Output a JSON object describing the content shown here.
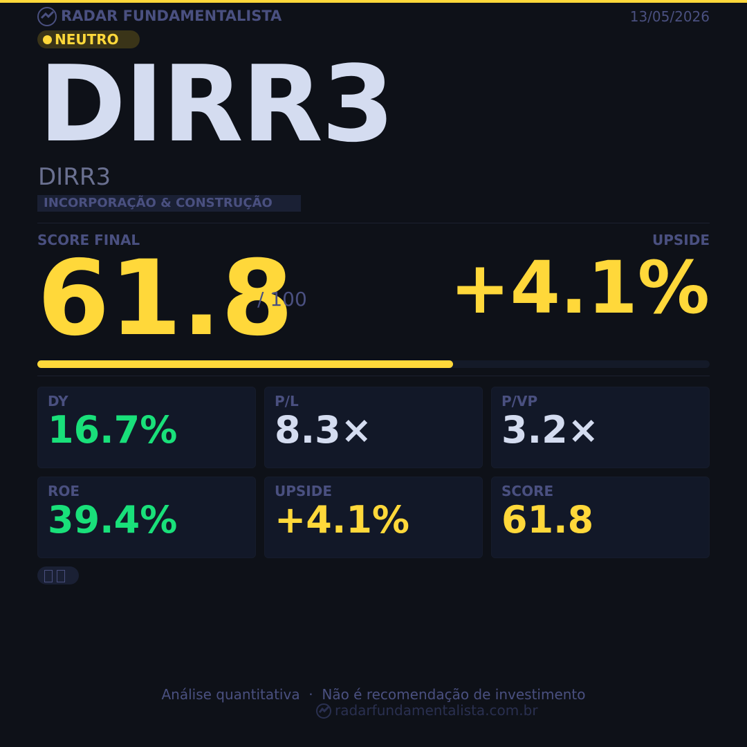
{
  "header": {
    "brand": "RADAR FUNDAMENTALISTA",
    "date": "13/05/2026"
  },
  "badge": "NEUTRO",
  "ticker": "DIRR3",
  "company": "DIRR3",
  "sector": "INCORPORAÇÃO & CONSTRUÇÃO",
  "score": {
    "label": "SCORE FINAL",
    "value": "61.8",
    "number": 61.8,
    "max_label": "/ 100",
    "max": 100
  },
  "upside": {
    "label": "UPSIDE",
    "value": "+4.1%"
  },
  "metrics": [
    {
      "label": "DY",
      "value": "16.7%",
      "color": "#19e07a"
    },
    {
      "label": "P/L",
      "value": "8.3×",
      "color": "#d4dcf0"
    },
    {
      "label": "P/VP",
      "value": "3.2×",
      "color": "#d4dcf0"
    },
    {
      "label": "ROE",
      "value": "39.4%",
      "color": "#19e07a"
    },
    {
      "label": "UPSIDE",
      "value": "+4.1%",
      "color": "#ffd83a"
    },
    {
      "label": "SCORE",
      "value": "61.8",
      "color": "#ffd83a"
    }
  ],
  "footer": {
    "disclaimer": "Análise quantitativa  ·  Não é recomendação de investimento",
    "site": "radarfundamentalista.com.br"
  }
}
